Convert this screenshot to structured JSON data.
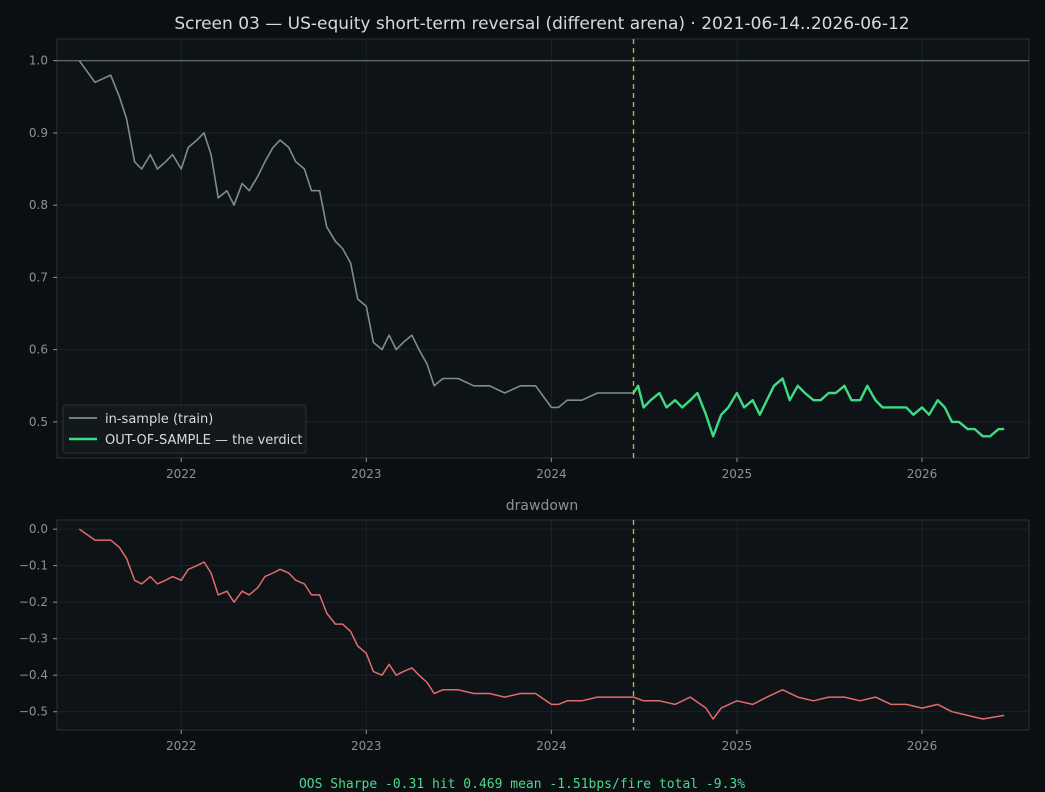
{
  "colors": {
    "background": "#0b0f11",
    "panel": "#0d1316",
    "frame": "#2b3236",
    "grid": "#1c2327",
    "text": "#d7dadc",
    "muted": "#8b9296",
    "in_sample": "#7f8e8b",
    "out_of_sample": "#3ddc84",
    "drawdown": "#e06c6c",
    "split_marker": "#d6a93a",
    "reference": "#6c7478",
    "footer": "#4cd98a"
  },
  "chart_data": [
    {
      "type": "line",
      "title": "Screen 03 — US-equity short-term reversal (different arena)  ·  2021-06-14..2026-06-12",
      "x_range": [
        "2021-06-14",
        "2026-06-12"
      ],
      "xlim": [
        "2021-05-01",
        "2026-07-31"
      ],
      "x_ticks": [
        "2022",
        "2023",
        "2024",
        "2025",
        "2026"
      ],
      "ylim": [
        0.45,
        1.03
      ],
      "y_ticks": [
        "1.0",
        "0.9",
        "0.8",
        "0.7",
        "0.6",
        "0.5"
      ],
      "grid": true,
      "reference_line_y": 1.0,
      "split_date": "2024-06-11",
      "legend_position": "lower-left",
      "series": [
        {
          "name": "in-sample (train)",
          "color": "#7f8e8b",
          "x": [
            "2021-06-14",
            "2021-07-15",
            "2021-08-15",
            "2021-09-01",
            "2021-09-15",
            "2021-10-01",
            "2021-10-15",
            "2021-11-01",
            "2021-11-15",
            "2021-12-01",
            "2021-12-15",
            "2022-01-01",
            "2022-01-15",
            "2022-02-01",
            "2022-02-15",
            "2022-03-01",
            "2022-03-15",
            "2022-04-01",
            "2022-04-15",
            "2022-05-01",
            "2022-05-15",
            "2022-06-01",
            "2022-06-15",
            "2022-07-01",
            "2022-07-15",
            "2022-08-01",
            "2022-08-15",
            "2022-09-01",
            "2022-09-15",
            "2022-10-01",
            "2022-10-15",
            "2022-11-01",
            "2022-11-15",
            "2022-12-01",
            "2022-12-15",
            "2023-01-01",
            "2023-01-15",
            "2023-02-01",
            "2023-02-15",
            "2023-03-01",
            "2023-03-15",
            "2023-04-01",
            "2023-04-15",
            "2023-05-01",
            "2023-05-15",
            "2023-06-01",
            "2023-07-01",
            "2023-08-01",
            "2023-09-01",
            "2023-10-01",
            "2023-11-01",
            "2023-12-01",
            "2024-01-01",
            "2024-01-15",
            "2024-02-01",
            "2024-02-15",
            "2024-03-01",
            "2024-04-01",
            "2024-05-01",
            "2024-06-11"
          ],
          "y": [
            1.0,
            0.97,
            0.98,
            0.95,
            0.92,
            0.86,
            0.85,
            0.87,
            0.85,
            0.86,
            0.87,
            0.85,
            0.88,
            0.89,
            0.9,
            0.87,
            0.81,
            0.82,
            0.8,
            0.83,
            0.82,
            0.84,
            0.86,
            0.88,
            0.89,
            0.88,
            0.86,
            0.85,
            0.82,
            0.82,
            0.77,
            0.75,
            0.74,
            0.72,
            0.67,
            0.66,
            0.61,
            0.6,
            0.62,
            0.6,
            0.61,
            0.62,
            0.6,
            0.58,
            0.55,
            0.56,
            0.56,
            0.55,
            0.55,
            0.54,
            0.55,
            0.55,
            0.52,
            0.52,
            0.53,
            0.53,
            0.53,
            0.54,
            0.54,
            0.54
          ]
        },
        {
          "name": "OUT-OF-SAMPLE — the verdict",
          "color": "#3ddc84",
          "x": [
            "2024-06-11",
            "2024-06-20",
            "2024-07-01",
            "2024-07-15",
            "2024-08-01",
            "2024-08-15",
            "2024-09-01",
            "2024-09-15",
            "2024-10-01",
            "2024-10-15",
            "2024-11-01",
            "2024-11-15",
            "2024-12-01",
            "2024-12-15",
            "2025-01-01",
            "2025-01-15",
            "2025-02-01",
            "2025-02-15",
            "2025-03-01",
            "2025-03-15",
            "2025-04-01",
            "2025-04-15",
            "2025-05-01",
            "2025-05-15",
            "2025-06-01",
            "2025-06-15",
            "2025-07-01",
            "2025-07-15",
            "2025-08-01",
            "2025-08-15",
            "2025-09-01",
            "2025-09-15",
            "2025-10-01",
            "2025-10-15",
            "2025-11-01",
            "2025-11-15",
            "2025-12-01",
            "2025-12-15",
            "2026-01-01",
            "2026-01-15",
            "2026-02-01",
            "2026-02-15",
            "2026-03-01",
            "2026-03-15",
            "2026-04-01",
            "2026-04-15",
            "2026-05-01",
            "2026-05-15",
            "2026-06-01",
            "2026-06-12"
          ],
          "y": [
            0.54,
            0.55,
            0.52,
            0.53,
            0.54,
            0.52,
            0.53,
            0.52,
            0.53,
            0.54,
            0.51,
            0.48,
            0.51,
            0.52,
            0.54,
            0.52,
            0.53,
            0.51,
            0.53,
            0.55,
            0.56,
            0.53,
            0.55,
            0.54,
            0.53,
            0.53,
            0.54,
            0.54,
            0.55,
            0.53,
            0.53,
            0.55,
            0.53,
            0.52,
            0.52,
            0.52,
            0.52,
            0.51,
            0.52,
            0.51,
            0.53,
            0.52,
            0.5,
            0.5,
            0.49,
            0.49,
            0.48,
            0.48,
            0.49,
            0.49
          ]
        }
      ]
    },
    {
      "type": "line",
      "title": "drawdown",
      "x_range": [
        "2021-06-14",
        "2026-06-12"
      ],
      "xlim": [
        "2021-05-01",
        "2026-07-31"
      ],
      "x_ticks": [
        "2022",
        "2023",
        "2024",
        "2025",
        "2026"
      ],
      "ylim": [
        -0.55,
        0.025
      ],
      "y_ticks": [
        "0.0",
        "−0.1",
        "−0.2",
        "−0.3",
        "−0.4",
        "−0.5"
      ],
      "grid": true,
      "split_date": "2024-06-11",
      "series": [
        {
          "color": "#e06c6c",
          "x": [
            "2021-06-14",
            "2021-07-15",
            "2021-08-15",
            "2021-09-01",
            "2021-09-15",
            "2021-10-01",
            "2021-10-15",
            "2021-11-01",
            "2021-11-15",
            "2021-12-01",
            "2021-12-15",
            "2022-01-01",
            "2022-01-15",
            "2022-02-01",
            "2022-02-15",
            "2022-03-01",
            "2022-03-15",
            "2022-04-01",
            "2022-04-15",
            "2022-05-01",
            "2022-05-15",
            "2022-06-01",
            "2022-06-15",
            "2022-07-01",
            "2022-07-15",
            "2022-08-01",
            "2022-08-15",
            "2022-09-01",
            "2022-09-15",
            "2022-10-01",
            "2022-10-15",
            "2022-11-01",
            "2022-11-15",
            "2022-12-01",
            "2022-12-15",
            "2023-01-01",
            "2023-01-15",
            "2023-02-01",
            "2023-02-15",
            "2023-03-01",
            "2023-03-15",
            "2023-04-01",
            "2023-04-15",
            "2023-05-01",
            "2023-05-15",
            "2023-06-01",
            "2023-07-01",
            "2023-08-01",
            "2023-09-01",
            "2023-10-01",
            "2023-11-01",
            "2023-12-01",
            "2024-01-01",
            "2024-01-15",
            "2024-02-01",
            "2024-03-01",
            "2024-04-01",
            "2024-05-01",
            "2024-06-11",
            "2024-07-01",
            "2024-08-01",
            "2024-09-01",
            "2024-10-01",
            "2024-11-01",
            "2024-11-15",
            "2024-12-01",
            "2025-01-01",
            "2025-02-01",
            "2025-03-01",
            "2025-04-01",
            "2025-05-01",
            "2025-06-01",
            "2025-07-01",
            "2025-08-01",
            "2025-09-01",
            "2025-10-01",
            "2025-11-01",
            "2025-12-01",
            "2026-01-01",
            "2026-02-01",
            "2026-03-01",
            "2026-04-01",
            "2026-05-01",
            "2026-06-12"
          ],
          "y": [
            0.0,
            -0.03,
            -0.03,
            -0.05,
            -0.08,
            -0.14,
            -0.15,
            -0.13,
            -0.15,
            -0.14,
            -0.13,
            -0.14,
            -0.11,
            -0.1,
            -0.09,
            -0.12,
            -0.18,
            -0.17,
            -0.2,
            -0.17,
            -0.18,
            -0.16,
            -0.13,
            -0.12,
            -0.11,
            -0.12,
            -0.14,
            -0.15,
            -0.18,
            -0.18,
            -0.23,
            -0.26,
            -0.26,
            -0.28,
            -0.32,
            -0.34,
            -0.39,
            -0.4,
            -0.37,
            -0.4,
            -0.39,
            -0.38,
            -0.4,
            -0.42,
            -0.45,
            -0.44,
            -0.44,
            -0.45,
            -0.45,
            -0.46,
            -0.45,
            -0.45,
            -0.48,
            -0.48,
            -0.47,
            -0.47,
            -0.46,
            -0.46,
            -0.46,
            -0.47,
            -0.47,
            -0.48,
            -0.46,
            -0.49,
            -0.52,
            -0.49,
            -0.47,
            -0.48,
            -0.46,
            -0.44,
            -0.46,
            -0.47,
            -0.46,
            -0.46,
            -0.47,
            -0.46,
            -0.48,
            -0.48,
            -0.49,
            -0.48,
            -0.5,
            -0.51,
            -0.52,
            -0.51
          ]
        }
      ]
    }
  ],
  "footer": {
    "stats": "OOS  Sharpe -0.31  hit 0.469  mean -1.51bps/fire  total -9.3%"
  }
}
